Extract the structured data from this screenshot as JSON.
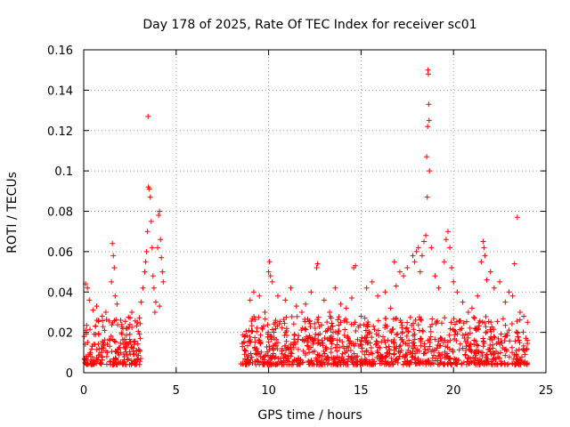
{
  "chart_data": {
    "type": "scatter",
    "title": "Day 178 of 2025, Rate Of TEC Index for receiver sc01",
    "xlabel": "GPS time / hours",
    "ylabel": "ROTI / TECUs",
    "xlim": [
      0,
      25
    ],
    "ylim": [
      0,
      0.16
    ],
    "grid": true,
    "x_ticks": [
      0,
      5,
      10,
      15,
      20,
      25
    ],
    "x_tick_labels": [
      "0",
      "5",
      "10",
      "15",
      "20",
      "25"
    ],
    "y_ticks": [
      0,
      0.02,
      0.04,
      0.06,
      0.08,
      0.1,
      0.12,
      0.14,
      0.16
    ],
    "y_tick_labels": [
      "0",
      "0.02",
      "0.04",
      "0.06",
      "0.08",
      "0.1",
      "0.12",
      "0.14",
      "0.16"
    ],
    "marker": "plus",
    "color": "#ff0000",
    "data_gap_hours": [
      3.1,
      8.5
    ],
    "baseline": {
      "segments": [
        [
          0.0,
          3.1
        ],
        [
          8.5,
          24.0
        ]
      ],
      "range": [
        0.004,
        0.028
      ]
    },
    "series": [
      {
        "name": "ROTI",
        "points": [
          [
            0.1,
            0.044
          ],
          [
            0.2,
            0.042
          ],
          [
            0.3,
            0.036
          ],
          [
            0.5,
            0.031
          ],
          [
            0.7,
            0.033
          ],
          [
            0.8,
            0.026
          ],
          [
            1.0,
            0.028
          ],
          [
            1.2,
            0.03
          ],
          [
            1.5,
            0.045
          ],
          [
            1.55,
            0.064
          ],
          [
            1.6,
            0.058
          ],
          [
            1.65,
            0.052
          ],
          [
            1.7,
            0.038
          ],
          [
            1.8,
            0.034
          ],
          [
            2.0,
            0.026
          ],
          [
            2.3,
            0.022
          ],
          [
            2.6,
            0.03
          ],
          [
            2.9,
            0.025
          ],
          [
            3.1,
            0.035
          ],
          [
            3.2,
            0.042
          ],
          [
            3.3,
            0.05
          ],
          [
            3.35,
            0.055
          ],
          [
            3.4,
            0.06
          ],
          [
            3.45,
            0.07
          ],
          [
            3.48,
            0.127
          ],
          [
            3.5,
            0.092
          ],
          [
            3.55,
            0.091
          ],
          [
            3.6,
            0.087
          ],
          [
            3.65,
            0.075
          ],
          [
            3.7,
            0.062
          ],
          [
            3.75,
            0.048
          ],
          [
            3.8,
            0.042
          ],
          [
            3.85,
            0.03
          ],
          [
            3.9,
            0.035
          ],
          [
            4.0,
            0.062
          ],
          [
            4.05,
            0.078
          ],
          [
            4.1,
            0.08
          ],
          [
            4.15,
            0.066
          ],
          [
            4.2,
            0.057
          ],
          [
            4.25,
            0.05
          ],
          [
            4.3,
            0.045
          ],
          [
            4.1,
            0.033
          ],
          [
            9.0,
            0.036
          ],
          [
            9.2,
            0.04
          ],
          [
            9.5,
            0.038
          ],
          [
            9.8,
            0.03
          ],
          [
            10.0,
            0.05
          ],
          [
            10.05,
            0.055
          ],
          [
            10.1,
            0.048
          ],
          [
            10.2,
            0.045
          ],
          [
            10.5,
            0.038
          ],
          [
            10.9,
            0.036
          ],
          [
            11.2,
            0.042
          ],
          [
            11.5,
            0.033
          ],
          [
            11.8,
            0.03
          ],
          [
            12.0,
            0.034
          ],
          [
            12.3,
            0.04
          ],
          [
            12.6,
            0.052
          ],
          [
            12.65,
            0.054
          ],
          [
            13.0,
            0.036
          ],
          [
            13.3,
            0.03
          ],
          [
            13.6,
            0.042
          ],
          [
            13.9,
            0.034
          ],
          [
            14.2,
            0.032
          ],
          [
            14.5,
            0.037
          ],
          [
            14.6,
            0.052
          ],
          [
            14.7,
            0.053
          ],
          [
            15.0,
            0.028
          ],
          [
            15.3,
            0.042
          ],
          [
            15.6,
            0.045
          ],
          [
            15.9,
            0.038
          ],
          [
            16.3,
            0.04
          ],
          [
            16.6,
            0.032
          ],
          [
            16.8,
            0.055
          ],
          [
            16.9,
            0.043
          ],
          [
            17.1,
            0.05
          ],
          [
            17.3,
            0.048
          ],
          [
            17.5,
            0.052
          ],
          [
            17.8,
            0.058
          ],
          [
            17.9,
            0.055
          ],
          [
            18.0,
            0.06
          ],
          [
            18.1,
            0.062
          ],
          [
            18.2,
            0.05
          ],
          [
            18.3,
            0.058
          ],
          [
            18.4,
            0.065
          ],
          [
            18.5,
            0.068
          ],
          [
            18.55,
            0.107
          ],
          [
            18.58,
            0.087
          ],
          [
            18.6,
            0.122
          ],
          [
            18.62,
            0.15
          ],
          [
            18.64,
            0.148
          ],
          [
            18.66,
            0.133
          ],
          [
            18.68,
            0.125
          ],
          [
            18.7,
            0.1
          ],
          [
            18.8,
            0.062
          ],
          [
            19.0,
            0.048
          ],
          [
            19.2,
            0.042
          ],
          [
            19.5,
            0.055
          ],
          [
            19.6,
            0.066
          ],
          [
            19.7,
            0.07
          ],
          [
            19.8,
            0.062
          ],
          [
            19.9,
            0.052
          ],
          [
            20.0,
            0.045
          ],
          [
            20.2,
            0.04
          ],
          [
            20.5,
            0.035
          ],
          [
            20.8,
            0.03
          ],
          [
            21.0,
            0.032
          ],
          [
            21.3,
            0.038
          ],
          [
            21.5,
            0.055
          ],
          [
            21.6,
            0.065
          ],
          [
            21.65,
            0.062
          ],
          [
            21.7,
            0.058
          ],
          [
            21.8,
            0.046
          ],
          [
            22.0,
            0.05
          ],
          [
            22.2,
            0.042
          ],
          [
            22.5,
            0.045
          ],
          [
            22.8,
            0.035
          ],
          [
            23.0,
            0.04
          ],
          [
            23.2,
            0.038
          ],
          [
            23.3,
            0.054
          ],
          [
            23.45,
            0.077
          ],
          [
            23.6,
            0.03
          ],
          [
            23.8,
            0.028
          ],
          [
            24.0,
            0.025
          ]
        ]
      }
    ]
  }
}
